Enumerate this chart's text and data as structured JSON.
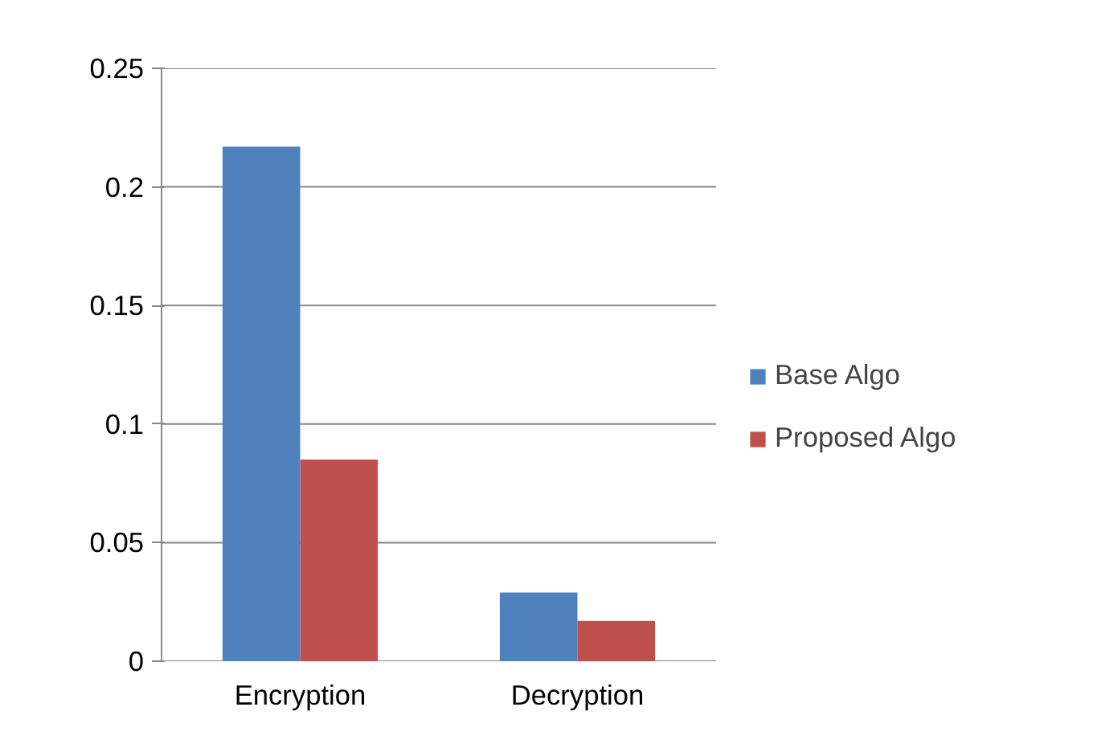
{
  "chart_data": {
    "type": "bar",
    "categories": [
      "Encryption",
      "Decryption"
    ],
    "series": [
      {
        "name": "Base Algo",
        "color": "#4f81bd",
        "values": [
          0.217,
          0.029
        ]
      },
      {
        "name": "Proposed Algo",
        "color": "#c0504d",
        "values": [
          0.085,
          0.017
        ]
      }
    ],
    "ylim": [
      0,
      0.25
    ],
    "yticks": [
      0,
      0.05,
      0.1,
      0.15,
      0.2,
      0.25
    ],
    "grid": "y",
    "legend": "right"
  }
}
